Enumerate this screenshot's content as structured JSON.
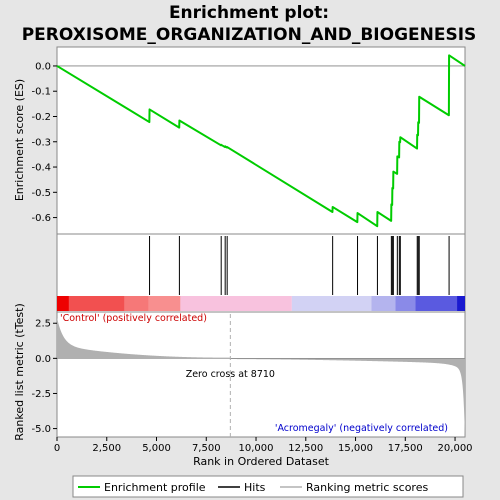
{
  "chart_data": {
    "type": "line",
    "title_line1": "Enrichment plot:",
    "title_line2": "PEROXISOME_ORGANIZATION_AND_BIOGENESIS",
    "xlabel": "Rank in Ordered Dataset",
    "ylabel_top": "Enrichment score (ES)",
    "ylabel_bottom": "Ranked list metric (tTest)",
    "xlim": [
      0,
      20500
    ],
    "x_ticks": [
      0,
      2500,
      5000,
      7500,
      10000,
      12500,
      15000,
      17500,
      20000
    ],
    "x_tick_labels": [
      "0",
      "2,500",
      "5,000",
      "7,500",
      "10,000",
      "12,500",
      "15,000",
      "17,500",
      "20,000"
    ],
    "es_ylim": [
      -0.665,
      0.075
    ],
    "es_ticks": [
      0.0,
      -0.1,
      -0.2,
      -0.3,
      -0.4,
      -0.5,
      -0.6
    ],
    "es_tick_labels": [
      "0.0",
      "-0.1",
      "-0.2",
      "-0.3",
      "-0.4",
      "-0.5",
      "-0.6"
    ],
    "metric_ylim": [
      -5.6,
      3.3
    ],
    "metric_ticks": [
      2.5,
      0.0,
      -2.5,
      -5.0
    ],
    "metric_tick_labels": [
      "2.5",
      "0.0",
      "-2.5",
      "-5.0"
    ],
    "hits": [
      4650,
      6150,
      8250,
      8450,
      8550,
      13850,
      15100,
      16100,
      16800,
      16850,
      16900,
      17100,
      17200,
      17250,
      18100,
      18150,
      18200,
      19700
    ],
    "es_profile": {
      "x": [
        0,
        4640,
        4650,
        6140,
        6150,
        8240,
        8250,
        8440,
        8450,
        8540,
        8550,
        13840,
        13850,
        15090,
        15100,
        16090,
        16100,
        16790,
        16800,
        16840,
        16850,
        16890,
        16900,
        17090,
        17100,
        17190,
        17200,
        17240,
        17250,
        18090,
        18100,
        18140,
        18150,
        18190,
        18200,
        19690,
        19700,
        20500
      ],
      "y": [
        0.0,
        -0.222,
        -0.172,
        -0.244,
        -0.216,
        -0.314,
        -0.312,
        -0.321,
        -0.318,
        -0.323,
        -0.321,
        -0.578,
        -0.558,
        -0.618,
        -0.582,
        -0.634,
        -0.578,
        -0.613,
        -0.548,
        -0.55,
        -0.483,
        -0.485,
        -0.418,
        -0.427,
        -0.358,
        -0.362,
        -0.3,
        -0.302,
        -0.282,
        -0.327,
        -0.272,
        -0.274,
        -0.223,
        -0.225,
        -0.122,
        -0.195,
        0.042,
        0.0
      ]
    },
    "zero_cross": 8710,
    "zero_cross_label": "Zero cross at 8710",
    "positive_label": "'Control' (positively correlated)",
    "negative_label": "'Acromegaly' (negatively correlated)",
    "legend": [
      "Enrichment profile",
      "Hits",
      "Ranking metric scores"
    ],
    "colors": {
      "profile": "#00cc00",
      "hit": "#000000",
      "metric_fill": "#b0b0b0",
      "positive_text": "#cc0000",
      "negative_text": "#0000cc",
      "zero_line": "#b0b0b0"
    },
    "band_segments": [
      {
        "x0": 0,
        "x1": 600,
        "color": "#ee0000"
      },
      {
        "x0": 600,
        "x1": 3400,
        "color": "#f25050"
      },
      {
        "x0": 3400,
        "x1": 4600,
        "color": "#f67878"
      },
      {
        "x0": 4600,
        "x1": 6200,
        "color": "#f88f8f"
      },
      {
        "x0": 6200,
        "x1": 11800,
        "color": "#f8c2de"
      },
      {
        "x0": 11800,
        "x1": 15800,
        "color": "#d2d2f4"
      },
      {
        "x0": 15800,
        "x1": 17000,
        "color": "#b4b4ee"
      },
      {
        "x0": 17000,
        "x1": 18000,
        "color": "#8a8ae8"
      },
      {
        "x0": 18000,
        "x1": 20100,
        "color": "#5a5ae0"
      },
      {
        "x0": 20100,
        "x1": 20500,
        "color": "#1a1ad0"
      }
    ]
  }
}
